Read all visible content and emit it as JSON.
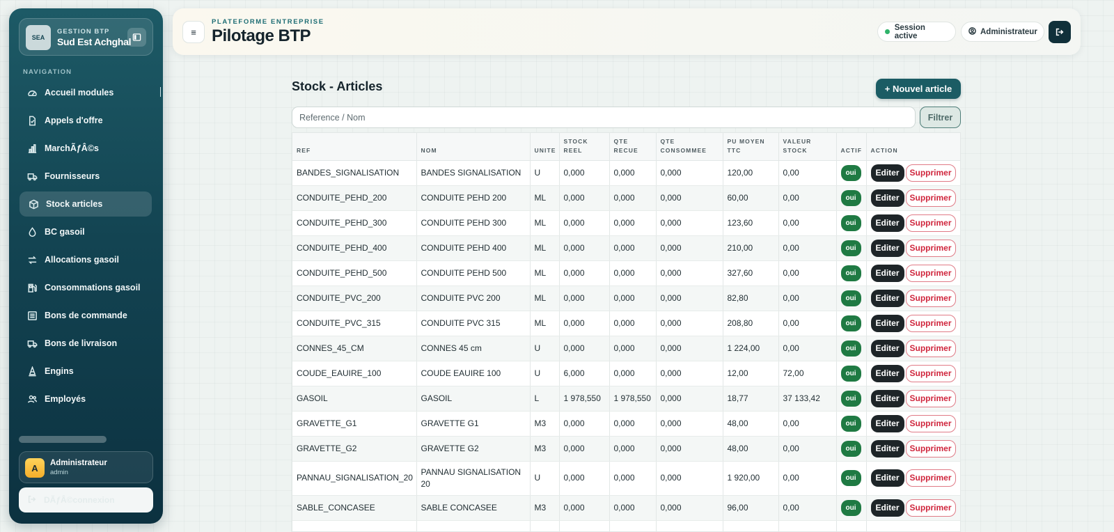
{
  "sidebar": {
    "brand_small": "GESTION BTP",
    "brand_name": "Sud Est Achghal",
    "brand_logo_text": "SEA",
    "nav_title": "NAVIGATION",
    "items": [
      {
        "label": "Accueil modules",
        "icon": "dashboard-icon"
      },
      {
        "label": "Appels d'offre",
        "icon": "document-icon"
      },
      {
        "label": "MarchÃƒÂ©s",
        "icon": "bar-chart-icon"
      },
      {
        "label": "Fournisseurs",
        "icon": "truck-icon"
      },
      {
        "label": "Stock articles",
        "icon": "box-icon",
        "active": true
      },
      {
        "label": "BC gasoil",
        "icon": "droplet-icon"
      },
      {
        "label": "Allocations gasoil",
        "icon": "arrows-icon"
      },
      {
        "label": "Consommations gasoil",
        "icon": "fuel-pump-icon"
      },
      {
        "label": "Bons de commande",
        "icon": "list-icon"
      },
      {
        "label": "Bons de livraison",
        "icon": "truck-icon"
      },
      {
        "label": "Engins",
        "icon": "cone-icon"
      },
      {
        "label": "Employés",
        "icon": "users-icon"
      }
    ],
    "user": {
      "initial": "A",
      "name": "Administrateur",
      "role": "admin"
    },
    "logout_label": "DÃƒÂ©connexion"
  },
  "header": {
    "eyebrow": "PLATEFORME ENTREPRISE",
    "title": "Pilotage BTP",
    "menu_glyph": "≡",
    "session_label": "Session active",
    "user_label": "Administrateur"
  },
  "main": {
    "title": "Stock - Articles",
    "new_button": "+ Nouvel article",
    "search_placeholder": "Reference / Nom",
    "filter_button": "Filtrer",
    "columns": [
      "REF",
      "NOM",
      "UNITE",
      "STOCK REEL",
      "QTE RECUE",
      "QTE CONSOMMEE",
      "PU MOYEN TTC",
      "VALEUR STOCK",
      "ACTIF",
      "ACTION"
    ],
    "edit_label": "Editer",
    "delete_label": "Supprimer",
    "rows": [
      {
        "ref": "BANDES_SIGNALISATION",
        "nom": "BANDES SIGNALISATION",
        "unite": "U",
        "stock": "0,000",
        "recue": "0,000",
        "conso": "0,000",
        "pu": "120,00",
        "valeur": "0,00",
        "actif": "oui"
      },
      {
        "ref": "CONDUITE_PEHD_200",
        "nom": "CONDUITE PEHD 200",
        "unite": "ML",
        "stock": "0,000",
        "recue": "0,000",
        "conso": "0,000",
        "pu": "60,00",
        "valeur": "0,00",
        "actif": "oui"
      },
      {
        "ref": "CONDUITE_PEHD_300",
        "nom": "CONDUITE PEHD 300",
        "unite": "ML",
        "stock": "0,000",
        "recue": "0,000",
        "conso": "0,000",
        "pu": "123,60",
        "valeur": "0,00",
        "actif": "oui"
      },
      {
        "ref": "CONDUITE_PEHD_400",
        "nom": "CONDUITE PEHD 400",
        "unite": "ML",
        "stock": "0,000",
        "recue": "0,000",
        "conso": "0,000",
        "pu": "210,00",
        "valeur": "0,00",
        "actif": "oui"
      },
      {
        "ref": "CONDUITE_PEHD_500",
        "nom": "CONDUITE PEHD 500",
        "unite": "ML",
        "stock": "0,000",
        "recue": "0,000",
        "conso": "0,000",
        "pu": "327,60",
        "valeur": "0,00",
        "actif": "oui"
      },
      {
        "ref": "CONDUITE_PVC_200",
        "nom": "CONDUITE PVC 200",
        "unite": "ML",
        "stock": "0,000",
        "recue": "0,000",
        "conso": "0,000",
        "pu": "82,80",
        "valeur": "0,00",
        "actif": "oui"
      },
      {
        "ref": "CONDUITE_PVC_315",
        "nom": "CONDUITE PVC 315",
        "unite": "ML",
        "stock": "0,000",
        "recue": "0,000",
        "conso": "0,000",
        "pu": "208,80",
        "valeur": "0,00",
        "actif": "oui"
      },
      {
        "ref": "CONNES_45_CM",
        "nom": "CONNES 45 cm",
        "unite": "U",
        "stock": "0,000",
        "recue": "0,000",
        "conso": "0,000",
        "pu": "1 224,00",
        "valeur": "0,00",
        "actif": "oui"
      },
      {
        "ref": "COUDE_EAUIRE_100",
        "nom": "COUDE EAUIRE 100",
        "unite": "U",
        "stock": "6,000",
        "recue": "0,000",
        "conso": "0,000",
        "pu": "12,00",
        "valeur": "72,00",
        "actif": "oui"
      },
      {
        "ref": "GASOIL",
        "nom": "GASOIL",
        "unite": "L",
        "stock": "1 978,550",
        "recue": "1 978,550",
        "conso": "0,000",
        "pu": "18,77",
        "valeur": "37 133,42",
        "actif": "oui"
      },
      {
        "ref": "GRAVETTE_G1",
        "nom": "GRAVETTE G1",
        "unite": "M3",
        "stock": "0,000",
        "recue": "0,000",
        "conso": "0,000",
        "pu": "48,00",
        "valeur": "0,00",
        "actif": "oui"
      },
      {
        "ref": "GRAVETTE_G2",
        "nom": "GRAVETTE G2",
        "unite": "M3",
        "stock": "0,000",
        "recue": "0,000",
        "conso": "0,000",
        "pu": "48,00",
        "valeur": "0,00",
        "actif": "oui"
      },
      {
        "ref": "PANNAU_SIGNALISATION_20",
        "nom": "PANNAU SIGNALISATION 20",
        "unite": "U",
        "stock": "0,000",
        "recue": "0,000",
        "conso": "0,000",
        "pu": "1 920,00",
        "valeur": "0,00",
        "actif": "oui",
        "tall": true
      },
      {
        "ref": "SABLE_CONCASEE",
        "nom": "SABLE CONCASEE",
        "unite": "M3",
        "stock": "0,000",
        "recue": "0,000",
        "conso": "0,000",
        "pu": "96,00",
        "valeur": "0,00",
        "actif": "oui"
      },
      {
        "ref": "",
        "nom": "",
        "unite": "",
        "stock": "",
        "recue": "",
        "conso": "",
        "pu": "",
        "valeur": "",
        "actif": ""
      }
    ]
  }
}
